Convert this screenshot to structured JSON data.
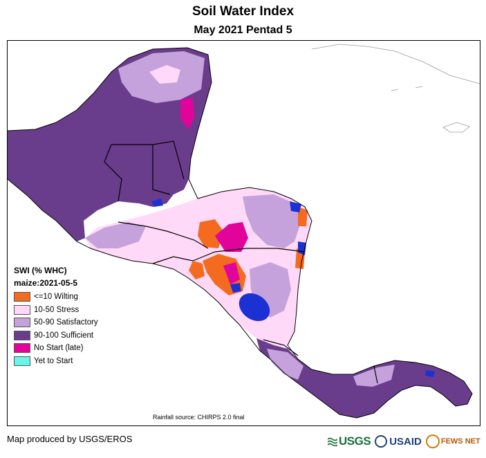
{
  "title": "Soil Water Index",
  "subtitle": "May 2021 Pentad 5",
  "legend": {
    "title": "SWI (% WHC)",
    "crop": "maize:2021-05-5",
    "items": [
      {
        "label": "<=10 Wilting",
        "color": "#f46a1e"
      },
      {
        "label": "10-50 Stress",
        "color": "#ffd9f7"
      },
      {
        "label": "50-90 Satisfactory",
        "color": "#c5a2db"
      },
      {
        "label": "90-100 Sufficient",
        "color": "#6a3d8c"
      },
      {
        "label": "No Start (late)",
        "color": "#e0049b"
      },
      {
        "label": "Yet to Start",
        "color": "#6af5e8"
      }
    ]
  },
  "water_color": "#1c31d4",
  "rainfall_source": "Rainfall source: CHIRPS 2.0 final",
  "credit": "Map produced by USGS/EROS",
  "logos": {
    "usgs": "USGS",
    "usaid": "USAID",
    "fews": "FEWS NET"
  }
}
